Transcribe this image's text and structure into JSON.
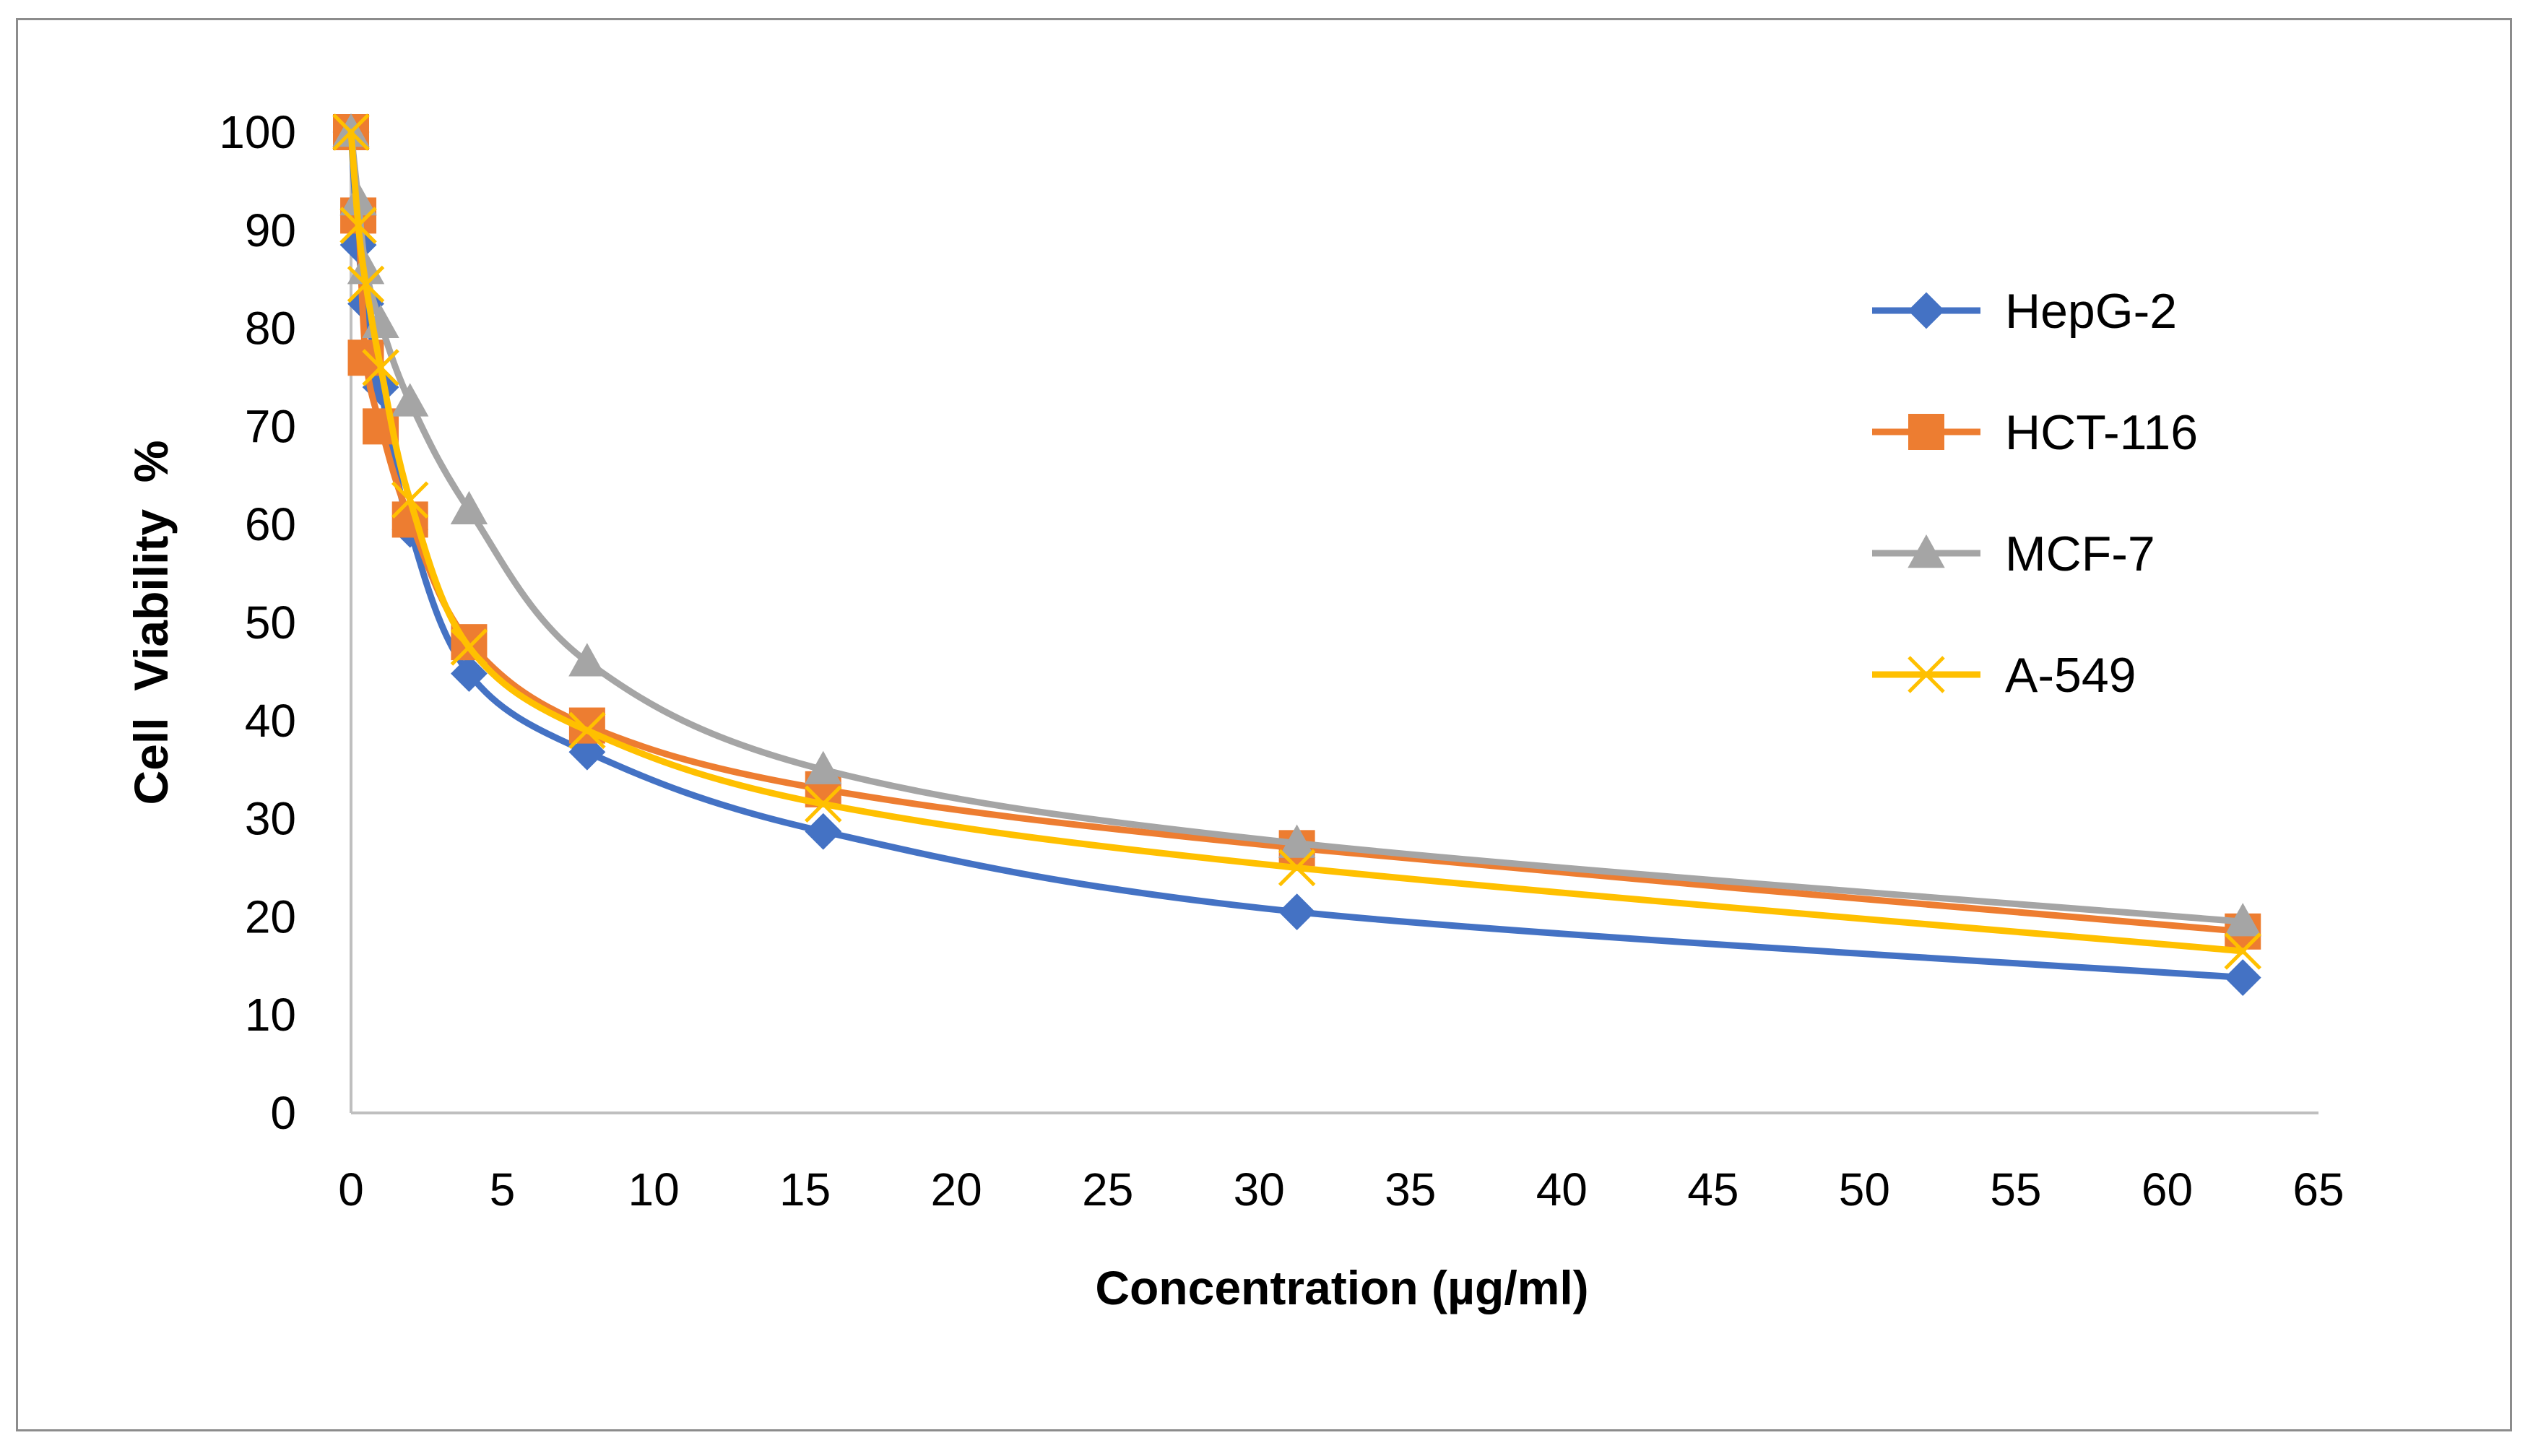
{
  "chart_data": {
    "type": "line",
    "title": "",
    "xlabel": "Concentration (µg/ml)",
    "ylabel": "Cell  Viability  %",
    "xlim": [
      0,
      65
    ],
    "ylim": [
      0,
      100
    ],
    "xticks": [
      "0",
      "5",
      "10",
      "15",
      "20",
      "25",
      "30",
      "35",
      "40",
      "45",
      "50",
      "55",
      "60",
      "65"
    ],
    "yticks": [
      "0",
      "10",
      "20",
      "30",
      "40",
      "50",
      "60",
      "70",
      "80",
      "90",
      "100"
    ],
    "x": [
      0,
      0.24,
      0.49,
      0.98,
      1.95,
      3.9,
      7.8,
      15.6,
      31.25,
      62.5
    ],
    "grid": false,
    "legend_position": "right",
    "series": [
      {
        "name": "HepG-2",
        "color": "#4472C4",
        "marker": "diamond",
        "values": [
          100,
          88.5,
          82.5,
          74,
          59.5,
          44.8,
          36.8,
          28.7,
          20.5,
          13.8
        ]
      },
      {
        "name": "HCT-116",
        "color": "#ED7D31",
        "marker": "square",
        "values": [
          100,
          91.5,
          77,
          70,
          60.5,
          48,
          39.5,
          33,
          27,
          18.5
        ]
      },
      {
        "name": "MCF-7",
        "color": "#A5A5A5",
        "marker": "triangle",
        "values": [
          100,
          93,
          86,
          80.5,
          72.5,
          61.5,
          46,
          35,
          27.5,
          19.5
        ]
      },
      {
        "name": "A-549",
        "color": "#FFC000",
        "marker": "x",
        "values": [
          100,
          90.5,
          84.5,
          76,
          62.5,
          47.5,
          39,
          31.5,
          25,
          16.5
        ]
      }
    ]
  }
}
